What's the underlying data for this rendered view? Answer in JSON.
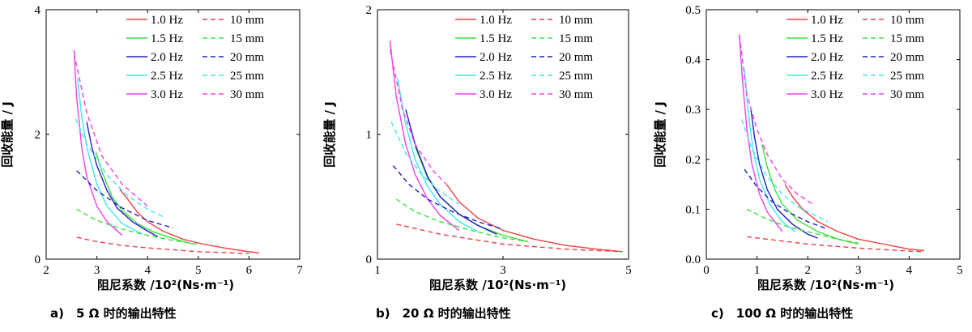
{
  "colors": {
    "1.0 Hz": "#f04040",
    "1.5 Hz": "#40dd40",
    "2.0 Hz": "#2020c0",
    "2.5 Hz": "#40e8f0",
    "3.0 Hz": "#f040f0"
  },
  "chart_data": [
    {
      "type": "line",
      "title": "",
      "xlabel": "阻尼系数 /10²(Ns·m⁻¹)",
      "ylabel": "回收能量 / J",
      "caption": "a)　5 Ω 时的输出特性",
      "xlim": [
        2,
        7
      ],
      "ylim": [
        0,
        4
      ],
      "xticks": [
        "2",
        "3",
        "4",
        "5",
        "6",
        "7"
      ],
      "yticks": [
        "0",
        "2",
        "4"
      ],
      "legend": {
        "placement": "top-right",
        "solid": [
          "1.0 Hz",
          "1.5 Hz",
          "2.0 Hz",
          "2.5 Hz",
          "3.0 Hz"
        ],
        "dashed": [
          "10 mm",
          "15 mm",
          "20 mm",
          "25 mm",
          "30 mm"
        ]
      },
      "series": [
        {
          "name": "1.0 Hz",
          "style": "solid",
          "x": [
            3.45,
            3.6,
            3.8,
            4.0,
            4.3,
            4.7,
            5.1,
            5.5,
            5.9,
            6.2
          ],
          "y": [
            1.12,
            0.97,
            0.75,
            0.6,
            0.45,
            0.32,
            0.24,
            0.18,
            0.13,
            0.1
          ]
        },
        {
          "name": "1.5 Hz",
          "style": "solid",
          "x": [
            2.98,
            3.1,
            3.3,
            3.5,
            3.8,
            4.1,
            4.5,
            4.9
          ],
          "y": [
            1.72,
            1.4,
            1.0,
            0.78,
            0.57,
            0.44,
            0.33,
            0.24
          ]
        },
        {
          "name": "2.0 Hz",
          "style": "solid",
          "x": [
            2.8,
            2.9,
            3.0,
            3.2,
            3.4,
            3.7,
            4.0,
            4.2
          ],
          "y": [
            2.2,
            1.8,
            1.5,
            1.1,
            0.82,
            0.6,
            0.45,
            0.36
          ]
        },
        {
          "name": "2.5 Hz",
          "style": "solid",
          "x": [
            2.62,
            2.7,
            2.8,
            3.0,
            3.2,
            3.5,
            3.9
          ],
          "y": [
            2.9,
            2.3,
            1.8,
            1.2,
            0.85,
            0.57,
            0.4
          ]
        },
        {
          "name": "3.0 Hz",
          "style": "solid",
          "x": [
            2.55,
            2.6,
            2.7,
            2.8,
            3.0,
            3.2,
            3.5
          ],
          "y": [
            3.35,
            2.6,
            1.8,
            1.32,
            0.85,
            0.6,
            0.38
          ]
        },
        {
          "name": "10 mm",
          "style": "dashed",
          "x": [
            2.6,
            3.0,
            3.5,
            4.0,
            5.0,
            6.0
          ],
          "y": [
            0.35,
            0.28,
            0.22,
            0.18,
            0.12,
            0.09
          ]
        },
        {
          "name": "15 mm",
          "style": "dashed",
          "x": [
            2.6,
            3.0,
            3.5,
            4.0,
            4.5,
            5.0
          ],
          "y": [
            0.8,
            0.62,
            0.48,
            0.38,
            0.3,
            0.24
          ]
        },
        {
          "name": "20 mm",
          "style": "dashed",
          "x": [
            2.6,
            3.0,
            3.5,
            4.0,
            4.5
          ],
          "y": [
            1.42,
            1.1,
            0.82,
            0.62,
            0.5
          ]
        },
        {
          "name": "25 mm",
          "style": "dashed",
          "x": [
            2.58,
            2.8,
            3.2,
            3.6,
            4.0,
            4.3
          ],
          "y": [
            2.25,
            1.85,
            1.35,
            1.02,
            0.8,
            0.68
          ]
        },
        {
          "name": "30 mm",
          "style": "dashed",
          "x": [
            2.55,
            2.8,
            3.1,
            3.5,
            4.0
          ],
          "y": [
            3.3,
            2.35,
            1.65,
            1.2,
            0.85
          ]
        }
      ]
    },
    {
      "type": "line",
      "title": "",
      "xlabel": "阻尼系数 /10²(Ns·m⁻¹)",
      "ylabel": "回收能量 / J",
      "caption": "b)　20 Ω 时的输出特性",
      "xlim": [
        1,
        5
      ],
      "ylim": [
        0,
        2
      ],
      "xticks": [
        "1",
        "3",
        "5"
      ],
      "yticks": [
        "0",
        "1",
        "2"
      ],
      "legend": {
        "placement": "top-right",
        "solid": [
          "1.0 Hz",
          "1.5 Hz",
          "2.0 Hz",
          "2.5 Hz",
          "3.0 Hz"
        ],
        "dashed": [
          "10 mm",
          "15 mm",
          "20 mm",
          "25 mm",
          "30 mm"
        ]
      },
      "series": [
        {
          "name": "1.0 Hz",
          "style": "solid",
          "x": [
            2.1,
            2.3,
            2.6,
            3.0,
            3.5,
            4.0,
            4.5,
            4.9
          ],
          "y": [
            0.6,
            0.46,
            0.33,
            0.23,
            0.16,
            0.11,
            0.08,
            0.06
          ]
        },
        {
          "name": "1.5 Hz",
          "style": "solid",
          "x": [
            1.6,
            1.8,
            2.0,
            2.3,
            2.6,
            3.0,
            3.4
          ],
          "y": [
            0.9,
            0.65,
            0.5,
            0.36,
            0.27,
            0.19,
            0.14
          ]
        },
        {
          "name": "2.0 Hz",
          "style": "solid",
          "x": [
            1.45,
            1.6,
            1.8,
            2.0,
            2.3,
            2.6,
            2.9
          ],
          "y": [
            1.2,
            0.92,
            0.66,
            0.5,
            0.36,
            0.27,
            0.2
          ]
        },
        {
          "name": "2.5 Hz",
          "style": "solid",
          "x": [
            1.32,
            1.45,
            1.6,
            1.8,
            2.0,
            2.3,
            2.6
          ],
          "y": [
            1.45,
            1.08,
            0.8,
            0.58,
            0.44,
            0.3,
            0.22
          ]
        },
        {
          "name": "3.0 Hz",
          "style": "solid",
          "x": [
            1.2,
            1.3,
            1.45,
            1.6,
            1.8,
            2.0,
            2.3
          ],
          "y": [
            1.75,
            1.3,
            0.92,
            0.68,
            0.48,
            0.35,
            0.23
          ]
        },
        {
          "name": "10 mm",
          "style": "dashed",
          "x": [
            1.3,
            2.0,
            2.5,
            3.0,
            4.0,
            4.9
          ],
          "y": [
            0.28,
            0.2,
            0.16,
            0.12,
            0.08,
            0.06
          ]
        },
        {
          "name": "15 mm",
          "style": "dashed",
          "x": [
            1.3,
            1.6,
            2.0,
            2.5,
            3.0,
            3.4
          ],
          "y": [
            0.48,
            0.38,
            0.3,
            0.23,
            0.17,
            0.14
          ]
        },
        {
          "name": "20 mm",
          "style": "dashed",
          "x": [
            1.25,
            1.5,
            1.8,
            2.2,
            2.6,
            3.0
          ],
          "y": [
            0.75,
            0.6,
            0.48,
            0.38,
            0.3,
            0.24
          ]
        },
        {
          "name": "25 mm",
          "style": "dashed",
          "x": [
            1.22,
            1.45,
            1.7,
            2.0,
            2.3
          ],
          "y": [
            1.1,
            0.85,
            0.68,
            0.54,
            0.44
          ]
        },
        {
          "name": "30 mm",
          "style": "dashed",
          "x": [
            1.2,
            1.4,
            1.6,
            1.9,
            2.1
          ],
          "y": [
            1.68,
            1.2,
            0.92,
            0.7,
            0.6
          ]
        }
      ]
    },
    {
      "type": "line",
      "title": "",
      "xlabel": "阻尼系数 /10²(Ns·m⁻¹)",
      "ylabel": "回收能量 / J",
      "caption": "c)　100 Ω 时的输出特性",
      "xlim": [
        0,
        5
      ],
      "ylim": [
        0,
        0.5
      ],
      "xticks": [
        "0",
        "1",
        "2",
        "3",
        "4",
        "5"
      ],
      "yticks": [
        "0.0",
        "0.1",
        "0.2",
        "0.3",
        "0.4",
        "0.5"
      ],
      "legend": {
        "placement": "top-right",
        "solid": [
          "1.0 Hz",
          "1.5 Hz",
          "2.0 Hz",
          "2.5 Hz",
          "3.0 Hz"
        ],
        "dashed": [
          "10 mm",
          "15 mm",
          "20 mm",
          "25 mm",
          "30 mm"
        ]
      },
      "series": [
        {
          "name": "1.0 Hz",
          "style": "solid",
          "x": [
            1.55,
            1.7,
            1.9,
            2.2,
            2.6,
            3.0,
            3.5,
            4.0,
            4.3
          ],
          "y": [
            0.15,
            0.125,
            0.1,
            0.075,
            0.055,
            0.04,
            0.03,
            0.02,
            0.017
          ]
        },
        {
          "name": "1.5 Hz",
          "style": "solid",
          "x": [
            1.1,
            1.2,
            1.35,
            1.5,
            1.8,
            2.2,
            2.6,
            3.0
          ],
          "y": [
            0.23,
            0.185,
            0.14,
            0.11,
            0.078,
            0.055,
            0.04,
            0.03
          ]
        },
        {
          "name": "2.0 Hz",
          "style": "solid",
          "x": [
            0.88,
            0.95,
            1.05,
            1.2,
            1.4,
            1.7,
            2.0,
            2.2
          ],
          "y": [
            0.3,
            0.245,
            0.19,
            0.14,
            0.1,
            0.07,
            0.05,
            0.042
          ]
        },
        {
          "name": "2.5 Hz",
          "style": "solid",
          "x": [
            0.75,
            0.82,
            0.92,
            1.05,
            1.25,
            1.5,
            1.75
          ],
          "y": [
            0.38,
            0.3,
            0.22,
            0.16,
            0.11,
            0.075,
            0.055
          ]
        },
        {
          "name": "3.0 Hz",
          "style": "solid",
          "x": [
            0.65,
            0.72,
            0.8,
            0.9,
            1.05,
            1.2,
            1.5
          ],
          "y": [
            0.45,
            0.35,
            0.26,
            0.19,
            0.13,
            0.095,
            0.055
          ]
        },
        {
          "name": "10 mm",
          "style": "dashed",
          "x": [
            0.8,
            1.2,
            1.6,
            2.0,
            3.0,
            4.0,
            4.3
          ],
          "y": [
            0.045,
            0.04,
            0.035,
            0.03,
            0.022,
            0.016,
            0.015
          ]
        },
        {
          "name": "15 mm",
          "style": "dashed",
          "x": [
            0.8,
            1.2,
            1.6,
            2.0,
            2.5,
            3.0
          ],
          "y": [
            0.1,
            0.08,
            0.065,
            0.055,
            0.042,
            0.032
          ]
        },
        {
          "name": "20 mm",
          "style": "dashed",
          "x": [
            0.75,
            1.0,
            1.3,
            1.6,
            2.0,
            2.4
          ],
          "y": [
            0.18,
            0.145,
            0.115,
            0.095,
            0.075,
            0.06
          ]
        },
        {
          "name": "25 mm",
          "style": "dashed",
          "x": [
            0.7,
            0.9,
            1.2,
            1.5,
            1.8,
            2.1,
            2.4
          ],
          "y": [
            0.28,
            0.22,
            0.165,
            0.13,
            0.105,
            0.09,
            0.075
          ]
        },
        {
          "name": "30 mm",
          "style": "dashed",
          "x": [
            0.65,
            0.8,
            1.0,
            1.2,
            1.5,
            1.8,
            2.1
          ],
          "y": [
            0.45,
            0.33,
            0.26,
            0.21,
            0.16,
            0.13,
            0.11
          ]
        }
      ]
    }
  ]
}
